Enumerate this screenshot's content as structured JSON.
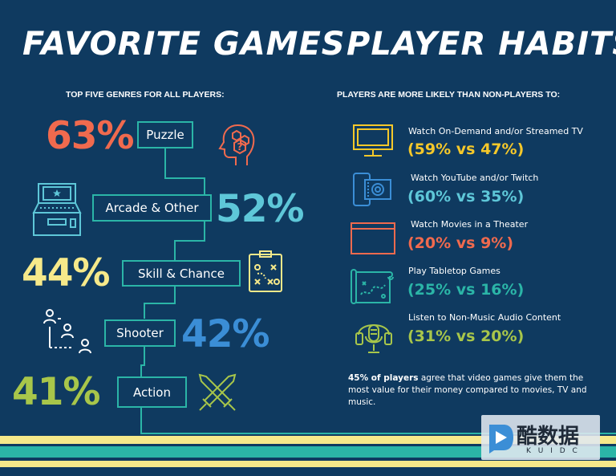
{
  "colors": {
    "background": "#0f3a60",
    "teal": "#2bb5a7",
    "orange": "#f06a4e",
    "cyan": "#5ec7d8",
    "yellow": "#f6e98a",
    "blue": "#3b8ed6",
    "green": "#a8c64a",
    "gold": "#f5c82a"
  },
  "left": {
    "title": "FAVORITE GAMES",
    "subtitle": "TOP FIVE GENRES FOR ALL PLAYERS:",
    "genres": [
      {
        "label": "Puzzle",
        "percent": "63%",
        "icon": "head-puzzle-icon"
      },
      {
        "label": "Arcade & Other",
        "percent": "52%",
        "icon": "arcade-cabinet-icon"
      },
      {
        "label": "Skill & Chance",
        "percent": "44%",
        "icon": "strategy-board-icon"
      },
      {
        "label": "Shooter",
        "percent": "42%",
        "icon": "people-network-icon"
      },
      {
        "label": "Action",
        "percent": "41%",
        "icon": "crossed-swords-icon"
      }
    ]
  },
  "right": {
    "title": "PLAYER HABITS",
    "subtitle": "PLAYERS ARE MORE LIKELY THAN NON-PLAYERS TO:",
    "habits": [
      {
        "label": "Watch On-Demand and/or Streamed TV",
        "value": "(59% vs 47%)",
        "icon": "tv-icon"
      },
      {
        "label": "Watch YouTube and/or Twitch",
        "value": "(60% vs 35%)",
        "icon": "phone-video-icon"
      },
      {
        "label": "Watch Movies in a Theater",
        "value": "(20% vs 9%)",
        "icon": "movie-screen-icon"
      },
      {
        "label": "Play Tabletop Games",
        "value": "(25% vs 16%)",
        "icon": "map-scroll-icon"
      },
      {
        "label": "Listen to Non-Music Audio Content",
        "value": "(31% vs 20%)",
        "icon": "podcast-mic-icon"
      }
    ],
    "footnote_bold": "45% of players",
    "footnote_rest": " agree that video games give them the most value for their money compared to movies, TV and music."
  },
  "watermark": {
    "text": "酷数据",
    "subtext": "K U I D C"
  }
}
